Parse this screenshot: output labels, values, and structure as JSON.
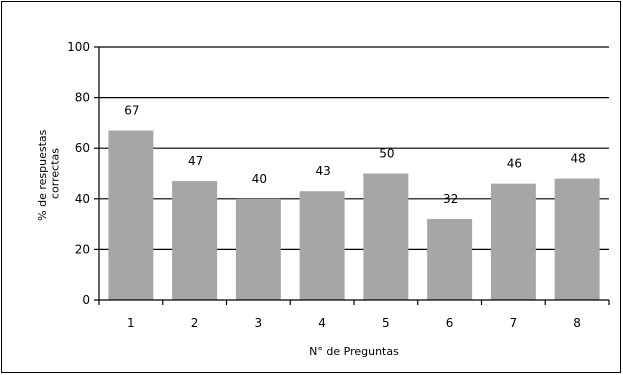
{
  "chart_data": {
    "type": "bar",
    "title": "",
    "categories": [
      "1",
      "2",
      "3",
      "4",
      "5",
      "6",
      "7",
      "8"
    ],
    "series": [
      {
        "values": [
          67,
          47,
          40,
          43,
          50,
          32,
          46,
          48
        ]
      }
    ],
    "data_labels": [
      "67",
      "47",
      "40",
      "43",
      "50",
      "32",
      "46",
      "48"
    ],
    "xlabel": "N° de Preguntas",
    "ylabel_lines": [
      "% de respuestas",
      "correctas"
    ],
    "ylim": [
      0,
      100
    ],
    "yticks": [
      0,
      20,
      40,
      60,
      80,
      100
    ],
    "ytick_labels": [
      "0",
      "20",
      "40",
      "60",
      "80",
      "100"
    ],
    "grid": true,
    "legend": "none",
    "colors": {
      "bar": "#a6a6a6",
      "grid": "#000000",
      "axis": "#000000",
      "text": "#000000"
    }
  }
}
